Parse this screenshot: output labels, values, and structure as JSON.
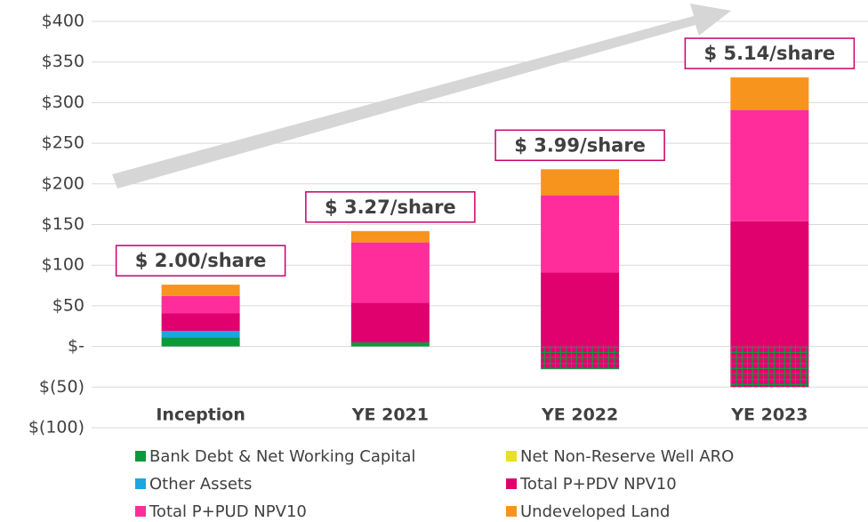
{
  "chart_data": {
    "type": "stacked_bar",
    "categories": [
      "Inception",
      "YE 2021",
      "YE 2022",
      "YE 2023"
    ],
    "series": [
      {
        "name": "Bank Debt & Net Working Capital",
        "color": "#0a9a3c",
        "values": [
          11,
          5,
          -28,
          -50
        ]
      },
      {
        "name": "Net Non-Reserve Well ARO",
        "color": "#e8e020",
        "values": [
          0,
          0,
          0,
          0
        ]
      },
      {
        "name": "Other Assets",
        "color": "#1aa7e0",
        "values": [
          8,
          0,
          0,
          0
        ]
      },
      {
        "name": "Total P+PDV NPV10",
        "color": "#e0006e",
        "values": [
          22,
          49,
          91,
          154
        ]
      },
      {
        "name": "Total P+PUD NPV10",
        "color": "#ff2d9b",
        "values": [
          21,
          74,
          95,
          137
        ]
      },
      {
        "name": "Undeveloped Land",
        "color": "#f7941d",
        "values": [
          14,
          14,
          32,
          40
        ]
      }
    ],
    "annotations": [
      "$ 2.00/share",
      "$ 3.27/share",
      "$ 3.99/share",
      "$ 5.14/share"
    ],
    "ylim": [
      -100,
      400
    ],
    "yticks": [
      {
        "value": -100,
        "label": "$(100)"
      },
      {
        "value": -50,
        "label": "$(50)"
      },
      {
        "value": 0,
        "label": "$-"
      },
      {
        "value": 50,
        "label": "$50"
      },
      {
        "value": 100,
        "label": "$100"
      },
      {
        "value": 150,
        "label": "$150"
      },
      {
        "value": 200,
        "label": "$200"
      },
      {
        "value": 250,
        "label": "$250"
      },
      {
        "value": 300,
        "label": "$300"
      },
      {
        "value": 350,
        "label": "$350"
      },
      {
        "value": 400,
        "label": "$400"
      }
    ],
    "grid": true
  }
}
